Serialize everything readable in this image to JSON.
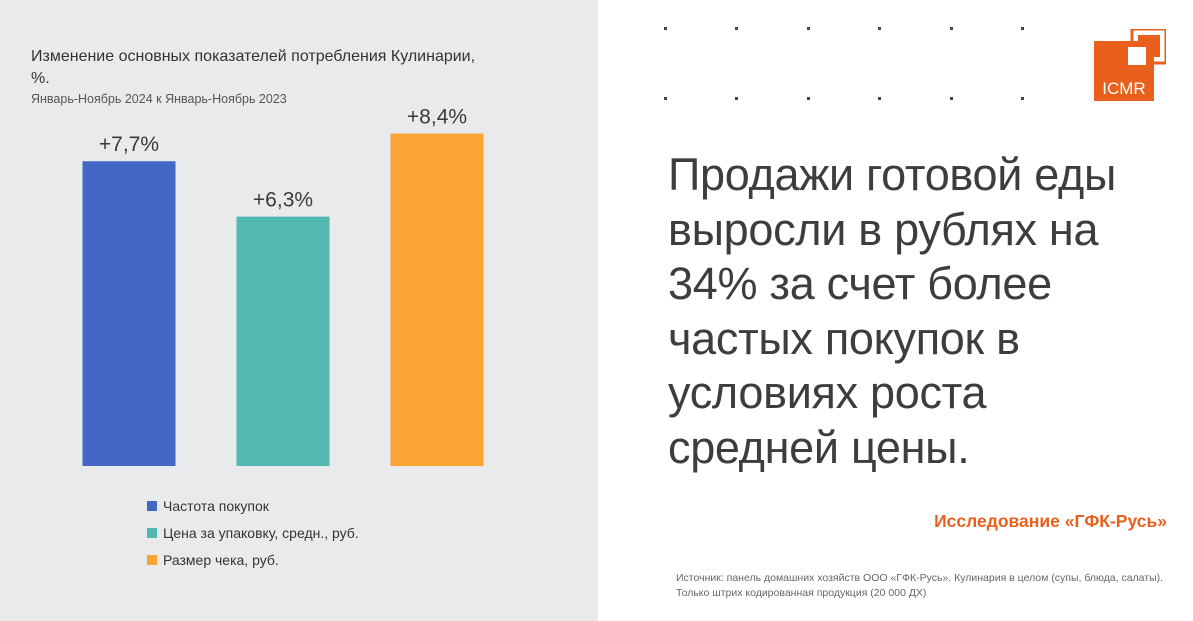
{
  "chart_data": {
    "type": "bar",
    "title": "Изменение основных показателей потребления Кулинарии, %.",
    "subtitle": "Январь-Ноябрь 2024 к Январь-Ноябрь 2023",
    "categories": [
      "Частота покупок",
      "Цена за упаковку, средн., руб.",
      "Размер чека, руб."
    ],
    "values": [
      7.7,
      6.3,
      8.4
    ],
    "data_labels": [
      "+7,7%",
      "+6,3%",
      "+8,4%"
    ],
    "colors": [
      "#4467c4",
      "#52b8b0",
      "#fba334"
    ],
    "ylim": [
      0,
      9.5
    ],
    "grid": false,
    "legend_position": "bottom"
  },
  "headline": "Продажи готовой еды выросли в рублях на 34% за счет более частых покупок в условиях роста средней цены.",
  "study_label": "Исследование «ГФК-Русь»",
  "source_note": "Источник: панель домашних хозяйств ООО «ГФК-Русь». Кулинария в целом (супы, блюда, салаты). Только штрих кодированная продукция (20 000 ДХ)",
  "logo": {
    "text": "ICMR",
    "color": "#e8601c"
  }
}
